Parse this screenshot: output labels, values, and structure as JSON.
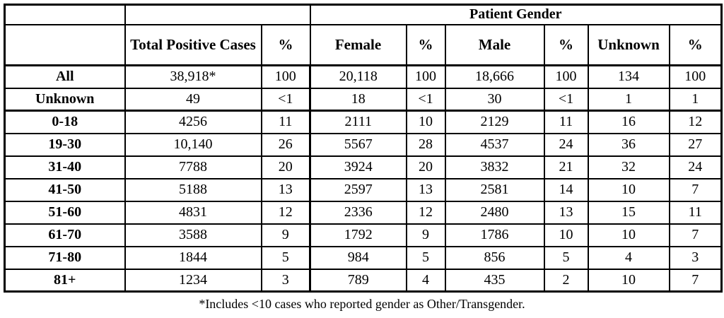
{
  "chart_data": {
    "type": "table",
    "group_header": "Patient Gender",
    "columns": [
      "",
      "Total Positive Cases",
      "%",
      "Female",
      "%",
      "Male",
      "%",
      "Unknown",
      "%"
    ],
    "rows": [
      {
        "label": "All",
        "values": [
          "38,918*",
          "100",
          "20,118",
          "100",
          "18,666",
          "100",
          "134",
          "100"
        ]
      },
      {
        "label": "Unknown",
        "values": [
          "49",
          "<1",
          "18",
          "<1",
          "30",
          "<1",
          "1",
          "1"
        ]
      },
      {
        "label": "0-18",
        "values": [
          "4256",
          "11",
          "2111",
          "10",
          "2129",
          "11",
          "16",
          "12"
        ]
      },
      {
        "label": "19-30",
        "values": [
          "10,140",
          "26",
          "5567",
          "28",
          "4537",
          "24",
          "36",
          "27"
        ]
      },
      {
        "label": "31-40",
        "values": [
          "7788",
          "20",
          "3924",
          "20",
          "3832",
          "21",
          "32",
          "24"
        ]
      },
      {
        "label": "41-50",
        "values": [
          "5188",
          "13",
          "2597",
          "13",
          "2581",
          "14",
          "10",
          "7"
        ]
      },
      {
        "label": "51-60",
        "values": [
          "4831",
          "12",
          "2336",
          "12",
          "2480",
          "13",
          "15",
          "11"
        ]
      },
      {
        "label": "61-70",
        "values": [
          "3588",
          "9",
          "1792",
          "9",
          "1786",
          "10",
          "10",
          "7"
        ]
      },
      {
        "label": "71-80",
        "values": [
          "1844",
          "5",
          "984",
          "5",
          "856",
          "5",
          "4",
          "3"
        ]
      },
      {
        "label": "81+",
        "values": [
          "1234",
          "3",
          "789",
          "4",
          "435",
          "2",
          "10",
          "7"
        ]
      }
    ],
    "footnote": "*Includes <10 cases who reported gender as Other/Transgender."
  }
}
